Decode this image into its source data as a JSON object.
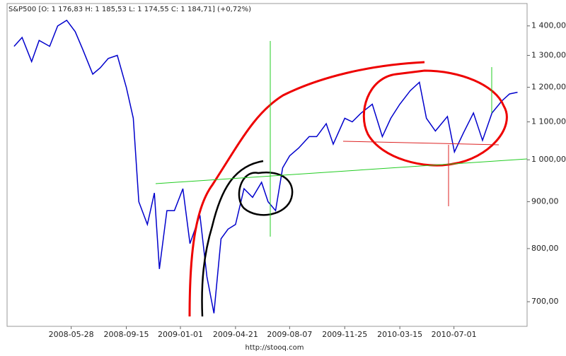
{
  "chart_data": {
    "type": "line",
    "title": "S&P500 [O: 1 176,83  H: 1 185,53  L: 1 174,55  C: 1 184,71] (+0,72%)",
    "footer": "http://stooq.com",
    "log_y": true,
    "y_axis_side": "right",
    "xlim": [
      "2008-01-21",
      "2010-11-24"
    ],
    "ylim": [
      658,
      1481
    ],
    "xticks": [
      "2008-05-28",
      "2008-09-15",
      "2009-01-01",
      "2009-04-21",
      "2009-08-07",
      "2009-11-25",
      "2010-03-15",
      "2010-07-01"
    ],
    "yticks": [
      {
        "value": 700,
        "label": "700,00"
      },
      {
        "value": 800,
        "label": "800,00"
      },
      {
        "value": 900,
        "label": "900,00"
      },
      {
        "value": 1000,
        "label": "1 000,00"
      },
      {
        "value": 1100,
        "label": "1 100,00"
      },
      {
        "value": 1200,
        "label": "1 200,00"
      },
      {
        "value": 1300,
        "label": "1 300,00"
      },
      {
        "value": 1400,
        "label": "1 400,00"
      }
    ],
    "x": [
      "2008-02-04",
      "2008-02-20",
      "2008-03-10",
      "2008-03-25",
      "2008-04-15",
      "2008-05-01",
      "2008-05-19",
      "2008-06-05",
      "2008-06-20",
      "2008-07-10",
      "2008-07-25",
      "2008-08-10",
      "2008-08-28",
      "2008-09-15",
      "2008-09-29",
      "2008-10-10",
      "2008-10-27",
      "2008-11-10",
      "2008-11-20",
      "2008-12-05",
      "2008-12-20",
      "2009-01-06",
      "2009-01-20",
      "2009-02-09",
      "2009-02-23",
      "2009-03-09",
      "2009-03-23",
      "2009-04-06",
      "2009-04-21",
      "2009-05-08",
      "2009-05-25",
      "2009-06-12",
      "2009-06-25",
      "2009-07-10",
      "2009-07-24",
      "2009-08-07",
      "2009-08-25",
      "2009-09-15",
      "2009-09-30",
      "2009-10-19",
      "2009-11-02",
      "2009-11-25",
      "2009-12-10",
      "2009-12-28",
      "2010-01-19",
      "2010-02-08",
      "2010-02-25",
      "2010-03-15",
      "2010-04-05",
      "2010-04-23",
      "2010-05-07",
      "2010-05-25",
      "2010-06-18",
      "2010-07-02",
      "2010-07-20",
      "2010-08-09",
      "2010-08-27",
      "2010-09-15",
      "2010-10-05",
      "2010-10-20",
      "2010-11-05"
    ],
    "series": [
      {
        "name": "S&P500",
        "color": "#0000cc",
        "values": [
          1330,
          1360,
          1280,
          1350,
          1330,
          1400,
          1420,
          1380,
          1320,
          1240,
          1260,
          1290,
          1300,
          1200,
          1110,
          900,
          850,
          920,
          760,
          880,
          880,
          930,
          810,
          870,
          745,
          680,
          820,
          840,
          850,
          930,
          910,
          945,
          900,
          880,
          980,
          1010,
          1030,
          1060,
          1060,
          1095,
          1040,
          1110,
          1100,
          1125,
          1150,
          1060,
          1110,
          1150,
          1190,
          1215,
          1110,
          1075,
          1115,
          1020,
          1070,
          1125,
          1050,
          1125,
          1160,
          1180,
          1185
        ]
      }
    ]
  }
}
